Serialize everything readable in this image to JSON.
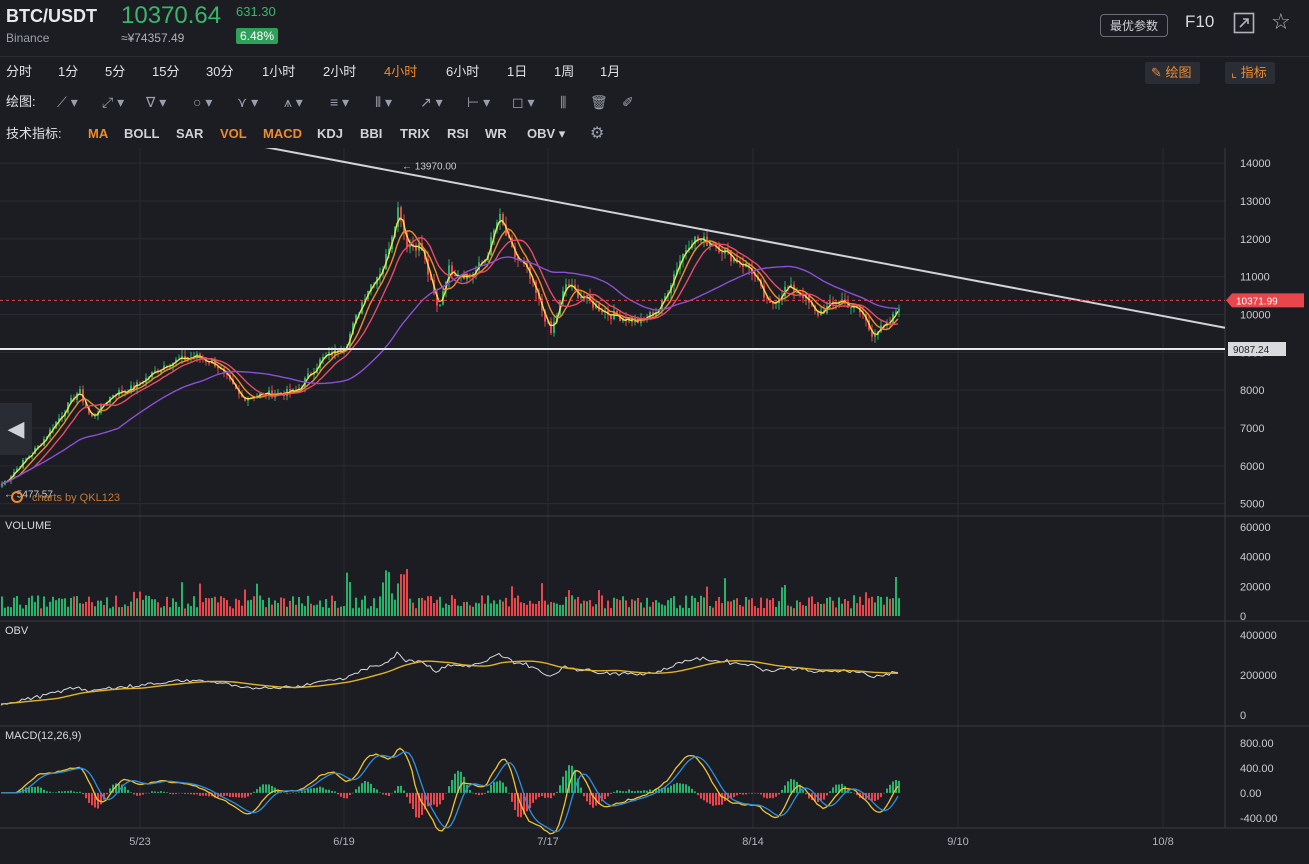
{
  "header": {
    "symbol": "BTC/USDT",
    "exchange": "Binance",
    "price": "10370.64",
    "price_cny": "≈¥74357.49",
    "change": "631.30",
    "change_pct": "6.48%",
    "best_params_label": "最优参数",
    "f10_label": "F10",
    "fullscreen_icon": "fullscreen-icon",
    "star_icon": "star-icon"
  },
  "timeframes": {
    "items": [
      "分时",
      "1分",
      "5分",
      "15分",
      "30分",
      "1小时",
      "2小时",
      "4小时",
      "6小时",
      "1日",
      "1周",
      "1月"
    ],
    "active": "4小时",
    "draw_button": "绘图",
    "indicator_button": "指标"
  },
  "drawing": {
    "label": "绘图:",
    "tools": [
      "line-tool-icon",
      "ray-tool-icon",
      "channel-tool-icon",
      "circle-tool-icon",
      "polyline-tool-icon",
      "pattern-tool-icon",
      "fib-tool-icon",
      "gann-tool-icon",
      "arrow-tool-icon",
      "measure-tool-icon",
      "note-tool-icon",
      "candle-tool-icon",
      "trash-icon",
      "pencil-icon"
    ]
  },
  "indicators": {
    "label": "技术指标:",
    "items": [
      "MA",
      "BOLL",
      "SAR",
      "VOL",
      "MACD",
      "KDJ",
      "BBI",
      "TRIX",
      "RSI",
      "WR",
      "OBV"
    ],
    "active": [
      "MA",
      "VOL",
      "MACD"
    ]
  },
  "chart_data": {
    "type": "candlestick",
    "price_axis": {
      "ticks": [
        14000,
        13000,
        12000,
        11000,
        10000,
        9000,
        8000,
        7000,
        6000,
        5000
      ],
      "min": 4700,
      "max": 14400
    },
    "date_ticks": [
      "5/23",
      "6/19",
      "7/17",
      "8/14",
      "9/10",
      "10/8"
    ],
    "price_anchors": [
      [
        0,
        5477
      ],
      [
        40,
        6600
      ],
      [
        78,
        8000
      ],
      [
        90,
        7250
      ],
      [
        112,
        7900
      ],
      [
        132,
        8050
      ],
      [
        165,
        8700
      ],
      [
        195,
        8900
      ],
      [
        215,
        8700
      ],
      [
        240,
        7800
      ],
      [
        268,
        7900
      ],
      [
        295,
        7950
      ],
      [
        320,
        8800
      ],
      [
        345,
        9200
      ],
      [
        365,
        10600
      ],
      [
        383,
        11300
      ],
      [
        398,
        12900
      ],
      [
        405,
        11900
      ],
      [
        420,
        11800
      ],
      [
        437,
        10100
      ],
      [
        447,
        11200
      ],
      [
        470,
        11000
      ],
      [
        485,
        11500
      ],
      [
        498,
        12600
      ],
      [
        512,
        11600
      ],
      [
        525,
        11200
      ],
      [
        537,
        10400
      ],
      [
        550,
        9500
      ],
      [
        565,
        10800
      ],
      [
        590,
        10300
      ],
      [
        610,
        10000
      ],
      [
        640,
        9800
      ],
      [
        660,
        10200
      ],
      [
        678,
        11400
      ],
      [
        690,
        12000
      ],
      [
        712,
        11900
      ],
      [
        732,
        11500
      ],
      [
        750,
        11200
      ],
      [
        768,
        10200
      ],
      [
        785,
        10700
      ],
      [
        800,
        10600
      ],
      [
        815,
        10000
      ],
      [
        840,
        10400
      ],
      [
        862,
        10000
      ],
      [
        870,
        9500
      ],
      [
        888,
        9700
      ],
      [
        900,
        10371
      ]
    ],
    "high_label": "13970.00",
    "low_label": "5477.57",
    "last_price_label": "10371.99",
    "support_label": "9087.24",
    "support_value": 9087.24,
    "trendline": [
      [
        250,
        14500
      ],
      [
        1225,
        9650
      ]
    ],
    "watermark": "charts by QKL123",
    "volume": {
      "title": "VOLUME",
      "ticks": [
        "60000",
        "40000",
        "20000",
        "0"
      ],
      "max": 62000
    },
    "obv": {
      "title": "OBV",
      "ticks": [
        "400000",
        "200000",
        "0"
      ],
      "max": 420000
    },
    "macd": {
      "title": "MACD(12,26,9)",
      "ticks": [
        "800.00",
        "400.00",
        "0.00",
        "-400.00"
      ],
      "min": -500,
      "max": 850
    }
  }
}
